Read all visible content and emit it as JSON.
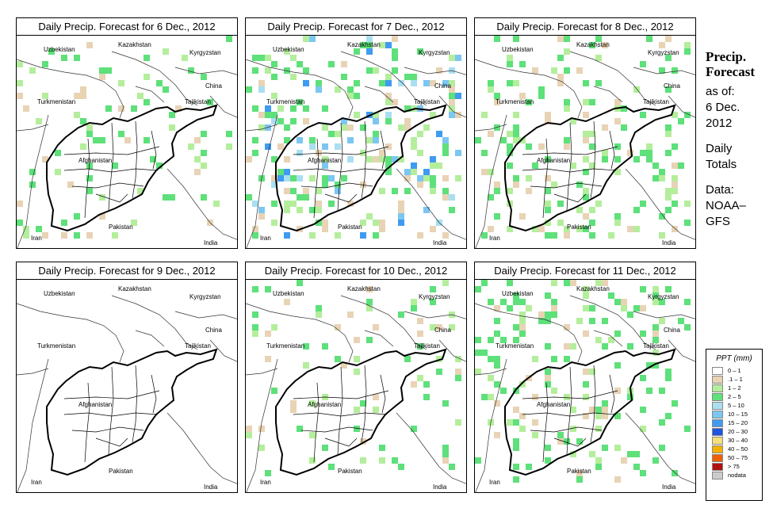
{
  "panels": [
    {
      "title": "Daily Precip. Forecast for  6 Dec., 2012",
      "intensity": 1
    },
    {
      "title": "Daily Precip. Forecast for  7 Dec., 2012",
      "intensity": 3
    },
    {
      "title": "Daily Precip. Forecast for  8 Dec., 2012",
      "intensity": 2
    },
    {
      "title": "Daily Precip. Forecast for  9 Dec., 2012",
      "intensity": 0
    },
    {
      "title": "Daily Precip. Forecast for  10 Dec., 2012",
      "intensity": 1
    },
    {
      "title": "Daily Precip. Forecast for  11 Dec., 2012",
      "intensity": 2
    }
  ],
  "countries": [
    "Kazakhstan",
    "Uzbekistan",
    "Kyrgyzstan",
    "China",
    "Turkmenistan",
    "Tajikistan",
    "Afghanistan",
    "Iran",
    "Pakistan",
    "India"
  ],
  "sidebar": {
    "title_line1": "Precip.",
    "title_line2": "Forecast",
    "asof_line1": "as of:",
    "asof_line2": "6 Dec.",
    "asof_line3": "2012",
    "totals_line1": "Daily",
    "totals_line2": "Totals",
    "data_line1": "Data:",
    "data_line2": "NOAA–",
    "data_line3": "GFS"
  },
  "legend": {
    "title": "PPT (mm)",
    "items": [
      {
        "label": "0 – 1",
        "color": "#ffffff"
      },
      {
        "label": ".1 – 1",
        "color": "#e8d3b5"
      },
      {
        "label": "1 – 2",
        "color": "#b4ee9c"
      },
      {
        "label": "2 – 5",
        "color": "#5ee07a"
      },
      {
        "label": "5 – 10",
        "color": "#a9dff0"
      },
      {
        "label": "10 – 15",
        "color": "#7cc6f2"
      },
      {
        "label": "15 – 20",
        "color": "#3f9bf0"
      },
      {
        "label": "20 – 30",
        "color": "#1f55e0"
      },
      {
        "label": "30 – 40",
        "color": "#f4e07a"
      },
      {
        "label": "40 – 50",
        "color": "#f6b000"
      },
      {
        "label": "50 – 75",
        "color": "#f06000"
      },
      {
        "label": "> 75",
        "color": "#b01010"
      },
      {
        "label": "nodata",
        "color": "#cccccc"
      }
    ]
  }
}
